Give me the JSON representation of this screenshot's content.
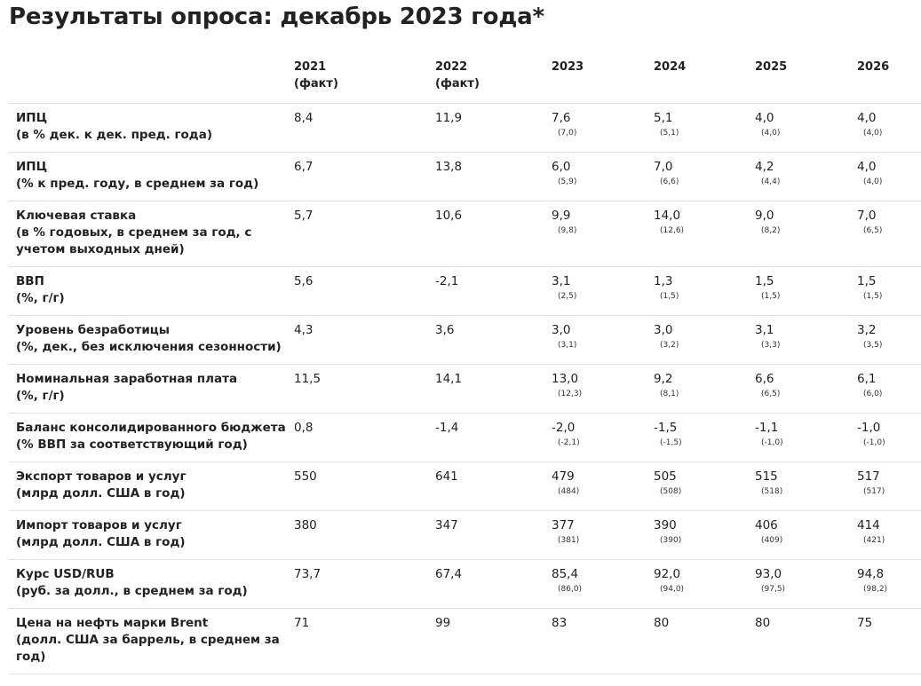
{
  "title": "Результаты опроса: декабрь 2023 года*",
  "columns": [
    {
      "year": "2021",
      "note": "(факт)"
    },
    {
      "year": "2022",
      "note": "(факт)"
    },
    {
      "year": "2023",
      "note": ""
    },
    {
      "year": "2024",
      "note": ""
    },
    {
      "year": "2025",
      "note": ""
    },
    {
      "year": "2026",
      "note": ""
    }
  ],
  "rows": [
    {
      "name": "ИПЦ",
      "unit": "(в % дек. к дек. пред. года)",
      "v2021": "8,4",
      "v2022": "11,9",
      "v2023": "7,6",
      "p2023": "(7,0)",
      "v2024": "5,1",
      "p2024": "(5,1)",
      "v2025": "4,0",
      "p2025": "(4,0)",
      "v2026": "4,0",
      "p2026": "(4,0)"
    },
    {
      "name": "ИПЦ",
      "unit": "(% к пред. году, в среднем за год)",
      "v2021": "6,7",
      "v2022": "13,8",
      "v2023": "6,0",
      "p2023": "(5,9)",
      "v2024": "7,0",
      "p2024": "(6,6)",
      "v2025": "4,2",
      "p2025": "(4,4)",
      "v2026": "4,0",
      "p2026": "(4,0)"
    },
    {
      "name": "Ключевая ставка",
      "unit": "(в % годовых, в среднем за год, с учетом выходных дней)",
      "v2021": "5,7",
      "v2022": "10,6",
      "v2023": "9,9",
      "p2023": "(9,8)",
      "v2024": "14,0",
      "p2024": "(12,6)",
      "v2025": "9,0",
      "p2025": "(8,2)",
      "v2026": "7,0",
      "p2026": "(6,5)"
    },
    {
      "name": "ВВП",
      "unit": "(%, г/г)",
      "v2021": "5,6",
      "v2022": "-2,1",
      "v2023": "3,1",
      "p2023": "(2,5)",
      "v2024": "1,3",
      "p2024": "(1,5)",
      "v2025": "1,5",
      "p2025": "(1,5)",
      "v2026": "1,5",
      "p2026": "(1,5)"
    },
    {
      "name": "Уровень безработицы",
      "unit": "(%, дек., без исключения сезонности)",
      "v2021": "4,3",
      "v2022": "3,6",
      "v2023": "3,0",
      "p2023": "(3,1)",
      "v2024": "3,0",
      "p2024": "(3,2)",
      "v2025": "3,1",
      "p2025": "(3,3)",
      "v2026": "3,2",
      "p2026": "(3,5)"
    },
    {
      "name": "Номинальная заработная плата",
      "unit": "(%, г/г)",
      "v2021": "11,5",
      "v2022": "14,1",
      "v2023": "13,0",
      "p2023": "(12,3)",
      "v2024": "9,2",
      "p2024": "(8,1)",
      "v2025": "6,6",
      "p2025": "(6,5)",
      "v2026": "6,1",
      "p2026": "(6,0)"
    },
    {
      "name": "Баланс консолидированного бюджета",
      "unit": "(% ВВП за соответствующий год)",
      "v2021": "0,8",
      "v2022": "-1,4",
      "v2023": "-2,0",
      "p2023": "(-2,1)",
      "v2024": "-1,5",
      "p2024": "(-1,5)",
      "v2025": "-1,1",
      "p2025": "(-1,0)",
      "v2026": "-1,0",
      "p2026": "(-1,0)"
    },
    {
      "name": "Экспорт товаров и услуг",
      "unit": "(млрд долл. США в год)",
      "v2021": "550",
      "v2022": "641",
      "v2023": "479",
      "p2023": "(484)",
      "v2024": "505",
      "p2024": "(508)",
      "v2025": "515",
      "p2025": "(518)",
      "v2026": "517",
      "p2026": "(517)"
    },
    {
      "name": "Импорт товаров и услуг",
      "unit": "(млрд долл. США в год)",
      "v2021": "380",
      "v2022": "347",
      "v2023": "377",
      "p2023": "(381)",
      "v2024": "390",
      "p2024": "(390)",
      "v2025": "406",
      "p2025": "(409)",
      "v2026": "414",
      "p2026": "(421)"
    },
    {
      "name": "Курс USD/RUB",
      "unit": "(руб. за долл., в среднем за год)",
      "v2021": "73,7",
      "v2022": "67,4",
      "v2023": "85,4",
      "p2023": "(86,0)",
      "v2024": "92,0",
      "p2024": "(94,0)",
      "v2025": "93,0",
      "p2025": "(97,5)",
      "v2026": "94,8",
      "p2026": "(98,2)"
    },
    {
      "name": "Цена на нефть марки Brent",
      "unit": "(долл. США за баррель, в среднем за год)",
      "v2021": "71",
      "v2022": "99",
      "v2023": "83",
      "p2023": "",
      "v2024": "80",
      "p2024": "",
      "v2025": "80",
      "p2025": "",
      "v2026": "75",
      "p2026": ""
    }
  ]
}
